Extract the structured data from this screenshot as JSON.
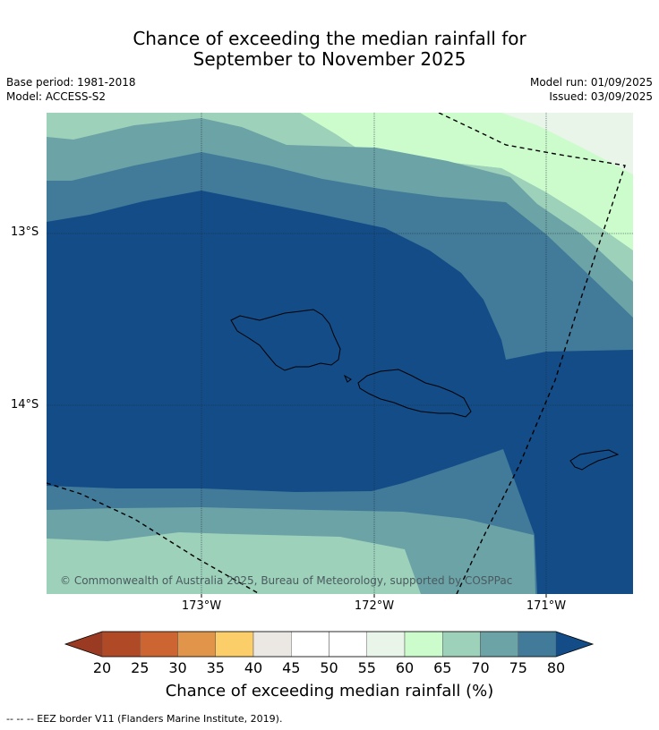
{
  "title": {
    "line1": "Chance of exceeding the median rainfall for",
    "line2": "September to November 2025"
  },
  "meta": {
    "base_period": "Base period: 1981-2018",
    "model": "Model: ACCESS-S2",
    "model_run": "Model run: 01/09/2025",
    "issued": "Issued: 03/09/2025"
  },
  "map": {
    "lon_labels": [
      "173°W",
      "172°W",
      "171°W"
    ],
    "lat_labels": [
      "13°S",
      "14°S"
    ],
    "copyright": "© Commonwealth of Australia 2025, Bureau of Meteorology, supported by COSPPac",
    "band_colors": {
      "b60_65": "#ccfccc",
      "b55_60": "#e8f5e8",
      "b65_70": "#9dd1b9",
      "b70_75": "#6ba3a6",
      "b75_80": "#427a99",
      "b80_plus": "#134c87"
    }
  },
  "colorbar": {
    "ticks": [
      "20",
      "25",
      "30",
      "35",
      "40",
      "45",
      "50",
      "55",
      "60",
      "65",
      "70",
      "75",
      "80"
    ],
    "colors": [
      "#b04a26",
      "#cd6532",
      "#e0954a",
      "#fcce69",
      "#ebe8e4",
      "#ffffff",
      "#ffffff",
      "#e8f5e8",
      "#ccfccc",
      "#9dd1b9",
      "#6ba3a6",
      "#427a99"
    ],
    "under_color": "#9a3a22",
    "over_color": "#134c87",
    "label": "Chance of exceeding median rainfall (%)"
  },
  "footnote": "--  --  -- EEZ border V11 (Flanders Marine Institute, 2019)."
}
